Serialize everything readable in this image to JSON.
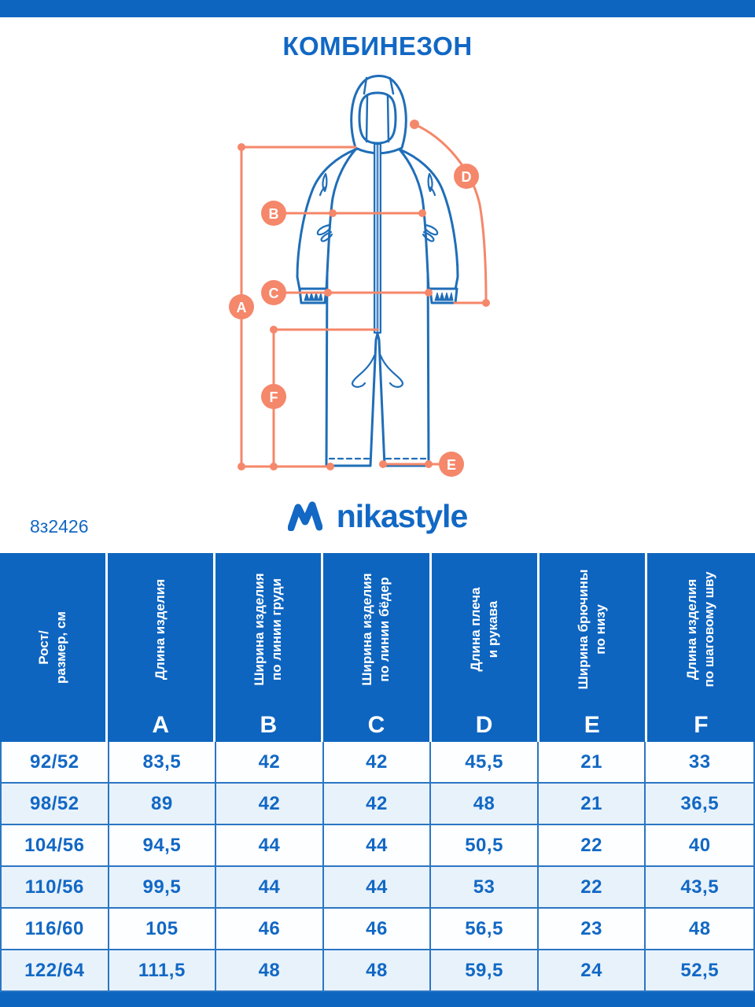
{
  "page": {
    "title": "КОМБИНЕЗОН",
    "article": "8з2426",
    "brand": "nikastyle",
    "colors": {
      "brand_blue": "#0e65c0",
      "text_blue": "#1268c4",
      "drawing_blue": "#1f6eb8",
      "accent_orange": "#f5876a",
      "alt_row": "#e8f2fb"
    }
  },
  "figure": {
    "description": "jumpsuit measurement diagram",
    "labels": {
      "A": "A",
      "B": "B",
      "C": "C",
      "D": "D",
      "E": "E",
      "F": "F"
    }
  },
  "table": {
    "columns": [
      {
        "label_lines": [
          "Рост/",
          "размер, см"
        ],
        "letter": ""
      },
      {
        "label_lines": [
          "Длина изделия"
        ],
        "letter": "A"
      },
      {
        "label_lines": [
          "Ширина изделия",
          "по линии груди"
        ],
        "letter": "B"
      },
      {
        "label_lines": [
          "Ширина изделия",
          "по линии бёдер"
        ],
        "letter": "C"
      },
      {
        "label_lines": [
          "Длина плеча",
          "и рукава"
        ],
        "letter": "D"
      },
      {
        "label_lines": [
          "Ширина брючины",
          "по низу"
        ],
        "letter": "E"
      },
      {
        "label_lines": [
          "Длина изделия",
          "по шаговому шву"
        ],
        "letter": "F"
      }
    ],
    "rows": [
      [
        "92/52",
        "83,5",
        "42",
        "42",
        "45,5",
        "21",
        "33"
      ],
      [
        "98/52",
        "89",
        "42",
        "42",
        "48",
        "21",
        "36,5"
      ],
      [
        "104/56",
        "94,5",
        "44",
        "44",
        "50,5",
        "22",
        "40"
      ],
      [
        "110/56",
        "99,5",
        "44",
        "44",
        "53",
        "22",
        "43,5"
      ],
      [
        "116/60",
        "105",
        "46",
        "46",
        "56,5",
        "23",
        "48"
      ],
      [
        "122/64",
        "111,5",
        "48",
        "48",
        "59,5",
        "24",
        "52,5"
      ]
    ]
  }
}
